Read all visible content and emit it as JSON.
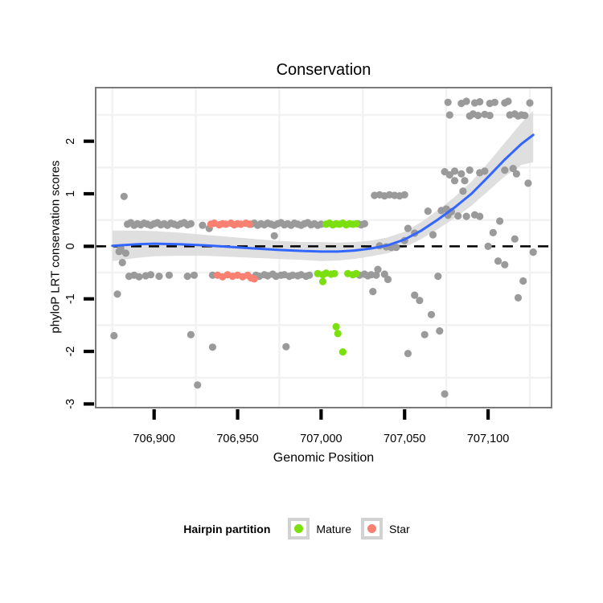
{
  "title": "Conservation",
  "axes": {
    "x_label": "Genomic Position",
    "y_label": "phyloP LRT conservation scores"
  },
  "legend": {
    "title": "Hairpin partition",
    "items": [
      {
        "label": "Mature",
        "color": "#7CE010"
      },
      {
        "label": "Star",
        "color": "#FA8072"
      }
    ]
  },
  "colors": {
    "other_points": "#9A9A9A",
    "mature_points": "#7CE010",
    "star_points": "#FA8072",
    "smooth_line": "#3366FF",
    "smooth_band": "#D9D9D9",
    "zero_line": "#000000",
    "grid": "#F2F2F2",
    "panel_border": "#7A7A7A",
    "tick": "#000000"
  },
  "chart_data": {
    "type": "scatter",
    "title": "Conservation",
    "xlabel": "Genomic Position",
    "ylabel": "phyloP LRT conservation scores",
    "xlim": [
      706865,
      707138
    ],
    "ylim": [
      -3.07,
      3.02
    ],
    "x_ticks": [
      706900,
      706950,
      707000,
      707050,
      707100
    ],
    "x_tick_labels": [
      "706,900",
      "706,950",
      "707,000",
      "707,050",
      "707,100"
    ],
    "y_ticks": [
      2,
      1,
      0,
      -1,
      -2,
      -3
    ],
    "y_tick_labels": [
      "2",
      "1",
      "0",
      "-1",
      "-2",
      "-3"
    ],
    "x_minor_grid": [
      706875,
      706925,
      706975,
      707025,
      707075,
      707125
    ],
    "y_minor_grid": [
      2.5,
      1.5,
      0.5,
      -0.5,
      -1.5,
      -2.5
    ],
    "zero_line_y": 0,
    "legend_position": "bottom",
    "series": [
      {
        "name": "Other",
        "color": "#9A9A9A",
        "points": [
          [
            706882,
            0.95
          ],
          [
            706879,
            -0.1
          ],
          [
            706880,
            -0.04
          ],
          [
            706883,
            -0.13
          ],
          [
            706881,
            -0.31
          ],
          [
            706878,
            -0.91
          ],
          [
            706876,
            -1.7
          ],
          [
            706884,
            0.42
          ],
          [
            706886,
            0.45
          ],
          [
            706888,
            0.4
          ],
          [
            706890,
            0.43
          ],
          [
            706892,
            0.41
          ],
          [
            706894,
            0.44
          ],
          [
            706896,
            0.42
          ],
          [
            706898,
            0.4
          ],
          [
            706900,
            0.43
          ],
          [
            706902,
            0.45
          ],
          [
            706904,
            0.41
          ],
          [
            706906,
            0.43
          ],
          [
            706908,
            0.4
          ],
          [
            706910,
            0.44
          ],
          [
            706912,
            0.42
          ],
          [
            706914,
            0.4
          ],
          [
            706916,
            0.43
          ],
          [
            706918,
            0.45
          ],
          [
            706920,
            0.41
          ],
          [
            706922,
            0.43
          ],
          [
            706929,
            0.4
          ],
          [
            706933,
            0.34
          ],
          [
            706958,
            0.42
          ],
          [
            706960,
            0.44
          ],
          [
            706962,
            0.4
          ],
          [
            706964,
            0.43
          ],
          [
            706966,
            0.41
          ],
          [
            706968,
            0.44
          ],
          [
            706970,
            0.42
          ],
          [
            706972,
            0.4
          ],
          [
            706974,
            0.43
          ],
          [
            706976,
            0.45
          ],
          [
            706978,
            0.41
          ],
          [
            706980,
            0.43
          ],
          [
            706982,
            0.4
          ],
          [
            706984,
            0.44
          ],
          [
            706986,
            0.42
          ],
          [
            706988,
            0.4
          ],
          [
            706990,
            0.43
          ],
          [
            706992,
            0.45
          ],
          [
            706994,
            0.41
          ],
          [
            706996,
            0.43
          ],
          [
            706998,
            0.4
          ],
          [
            707000,
            0.42
          ],
          [
            707022,
            0.43
          ],
          [
            707024,
            0.41
          ],
          [
            707026,
            0.43
          ],
          [
            706972,
            0.2
          ],
          [
            707032,
            0.97
          ],
          [
            707035,
            0.98
          ],
          [
            707038,
            0.96
          ],
          [
            707041,
            0.98
          ],
          [
            707044,
            0.97
          ],
          [
            707047,
            0.96
          ],
          [
            707050,
            0.98
          ],
          [
            707035,
            0.01
          ],
          [
            707039,
            -0.01
          ],
          [
            707042,
            -0.02
          ],
          [
            707045,
            -0.02
          ],
          [
            707050,
            0.11
          ],
          [
            707052,
            0.34
          ],
          [
            707056,
            0.25
          ],
          [
            707064,
            0.67
          ],
          [
            707067,
            0.22
          ],
          [
            707072,
            0.68
          ],
          [
            707075,
            0.71
          ],
          [
            707078,
            0.66
          ],
          [
            707076,
            0.59
          ],
          [
            707082,
            0.58
          ],
          [
            707087,
            0.57
          ],
          [
            707092,
            0.6
          ],
          [
            707095,
            0.57
          ],
          [
            707107,
            0.48
          ],
          [
            707103,
            0.26
          ],
          [
            707116,
            0.14
          ],
          [
            707074,
            1.42
          ],
          [
            707077,
            1.36
          ],
          [
            707080,
            1.43
          ],
          [
            707084,
            1.38
          ],
          [
            707089,
            1.45
          ],
          [
            707095,
            1.4
          ],
          [
            707098,
            1.43
          ],
          [
            707110,
            1.45
          ],
          [
            707115,
            1.48
          ],
          [
            707117,
            1.38
          ],
          [
            707080,
            1.25
          ],
          [
            707086,
            1.25
          ],
          [
            707085,
            1.05
          ],
          [
            707124,
            1.2
          ],
          [
            707076,
            2.74
          ],
          [
            707084,
            2.72
          ],
          [
            707087,
            2.76
          ],
          [
            707092,
            2.73
          ],
          [
            707095,
            2.75
          ],
          [
            707101,
            2.72
          ],
          [
            707104,
            2.74
          ],
          [
            707110,
            2.73
          ],
          [
            707112,
            2.76
          ],
          [
            707125,
            2.73
          ],
          [
            707077,
            2.5
          ],
          [
            707089,
            2.48
          ],
          [
            707091,
            2.52
          ],
          [
            707094,
            2.49
          ],
          [
            707098,
            2.51
          ],
          [
            707101,
            2.49
          ],
          [
            707113,
            2.5
          ],
          [
            707116,
            2.52
          ],
          [
            707118,
            2.48
          ],
          [
            707120,
            2.5
          ],
          [
            707122,
            2.49
          ],
          [
            706885,
            -0.57
          ],
          [
            706888,
            -0.55
          ],
          [
            706891,
            -0.58
          ],
          [
            706895,
            -0.56
          ],
          [
            706898,
            -0.54
          ],
          [
            706903,
            -0.57
          ],
          [
            706909,
            -0.55
          ],
          [
            706920,
            -0.57
          ],
          [
            706924,
            -0.55
          ],
          [
            706935,
            -0.55
          ],
          [
            706961,
            -0.55
          ],
          [
            706963,
            -0.57
          ],
          [
            706966,
            -0.54
          ],
          [
            706968,
            -0.56
          ],
          [
            706971,
            -0.53
          ],
          [
            706973,
            -0.57
          ],
          [
            706976,
            -0.55
          ],
          [
            706978,
            -0.54
          ],
          [
            706981,
            -0.57
          ],
          [
            706983,
            -0.55
          ],
          [
            706986,
            -0.56
          ],
          [
            706988,
            -0.54
          ],
          [
            706991,
            -0.57
          ],
          [
            706993,
            -0.55
          ],
          [
            707023,
            -0.55
          ],
          [
            707026,
            -0.53
          ],
          [
            707028,
            -0.56
          ],
          [
            707030,
            -0.54
          ],
          [
            707033,
            -0.55
          ],
          [
            707034,
            -0.44
          ],
          [
            707038,
            -0.53
          ],
          [
            707040,
            -0.63
          ],
          [
            707031,
            -0.86
          ],
          [
            707056,
            -0.93
          ],
          [
            707059,
            -1.03
          ],
          [
            707066,
            -1.3
          ],
          [
            707062,
            -1.68
          ],
          [
            707071,
            -1.61
          ],
          [
            707052,
            -2.04
          ],
          [
            707074,
            -2.81
          ],
          [
            707070,
            -0.57
          ],
          [
            707100,
            0.0
          ],
          [
            707106,
            -0.28
          ],
          [
            707110,
            -0.35
          ],
          [
            707127,
            -0.11
          ],
          [
            707121,
            -0.66
          ],
          [
            707118,
            -0.98
          ],
          [
            706922,
            -1.68
          ],
          [
            706935,
            -1.92
          ],
          [
            706926,
            -2.64
          ],
          [
            706979,
            -1.91
          ]
        ]
      },
      {
        "name": "Star",
        "color": "#FA8072",
        "points": [
          [
            706934,
            0.42
          ],
          [
            706936,
            0.44
          ],
          [
            706939,
            0.41
          ],
          [
            706941,
            0.43
          ],
          [
            706943,
            0.42
          ],
          [
            706946,
            0.44
          ],
          [
            706948,
            0.41
          ],
          [
            706950,
            0.43
          ],
          [
            706952,
            0.42
          ],
          [
            706955,
            0.44
          ],
          [
            706957,
            0.42
          ],
          [
            706938,
            -0.55
          ],
          [
            706941,
            -0.58
          ],
          [
            706944,
            -0.54
          ],
          [
            706947,
            -0.57
          ],
          [
            706950,
            -0.55
          ],
          [
            706953,
            -0.58
          ],
          [
            706956,
            -0.55
          ],
          [
            706958,
            -0.6
          ],
          [
            706960,
            -0.62
          ]
        ]
      },
      {
        "name": "Mature",
        "color": "#7CE010",
        "points": [
          [
            707003,
            0.42
          ],
          [
            707005,
            0.44
          ],
          [
            707007,
            0.41
          ],
          [
            707009,
            0.43
          ],
          [
            707011,
            0.42
          ],
          [
            707013,
            0.44
          ],
          [
            707015,
            0.41
          ],
          [
            707017,
            0.43
          ],
          [
            707019,
            0.42
          ],
          [
            707021,
            0.43
          ],
          [
            706998,
            -0.52
          ],
          [
            707001,
            -0.54
          ],
          [
            707003,
            -0.51
          ],
          [
            707006,
            -0.53
          ],
          [
            707008,
            -0.52
          ],
          [
            707001,
            -0.67
          ],
          [
            707016,
            -0.52
          ],
          [
            707019,
            -0.54
          ],
          [
            707021,
            -0.52
          ],
          [
            707009,
            -1.53
          ],
          [
            707010,
            -1.66
          ],
          [
            707013,
            -2.01
          ]
        ]
      }
    ],
    "smooth": {
      "color": "#3366FF",
      "band_color": "#D9D9D9",
      "points": [
        [
          706875,
          0.01,
          -0.28,
          0.3
        ],
        [
          706890,
          0.04,
          -0.22,
          0.3
        ],
        [
          706900,
          0.05,
          -0.19,
          0.29
        ],
        [
          706915,
          0.04,
          -0.18,
          0.26
        ],
        [
          706930,
          0.02,
          -0.18,
          0.22
        ],
        [
          706945,
          -0.01,
          -0.2,
          0.18
        ],
        [
          706960,
          -0.04,
          -0.22,
          0.14
        ],
        [
          706975,
          -0.07,
          -0.24,
          0.1
        ],
        [
          706990,
          -0.09,
          -0.26,
          0.08
        ],
        [
          707000,
          -0.1,
          -0.28,
          0.08
        ],
        [
          707010,
          -0.1,
          -0.27,
          0.07
        ],
        [
          707020,
          -0.08,
          -0.24,
          0.08
        ],
        [
          707030,
          -0.04,
          -0.19,
          0.11
        ],
        [
          707040,
          0.02,
          -0.13,
          0.17
        ],
        [
          707050,
          0.13,
          -0.02,
          0.28
        ],
        [
          707060,
          0.3,
          0.14,
          0.46
        ],
        [
          707070,
          0.51,
          0.33,
          0.69
        ],
        [
          707080,
          0.74,
          0.54,
          0.94
        ],
        [
          707090,
          1.0,
          0.77,
          1.23
        ],
        [
          707100,
          1.32,
          1.05,
          1.59
        ],
        [
          707110,
          1.65,
          1.33,
          1.97
        ],
        [
          707120,
          1.95,
          1.55,
          2.35
        ],
        [
          707127,
          2.12,
          1.6,
          2.58
        ]
      ]
    }
  }
}
